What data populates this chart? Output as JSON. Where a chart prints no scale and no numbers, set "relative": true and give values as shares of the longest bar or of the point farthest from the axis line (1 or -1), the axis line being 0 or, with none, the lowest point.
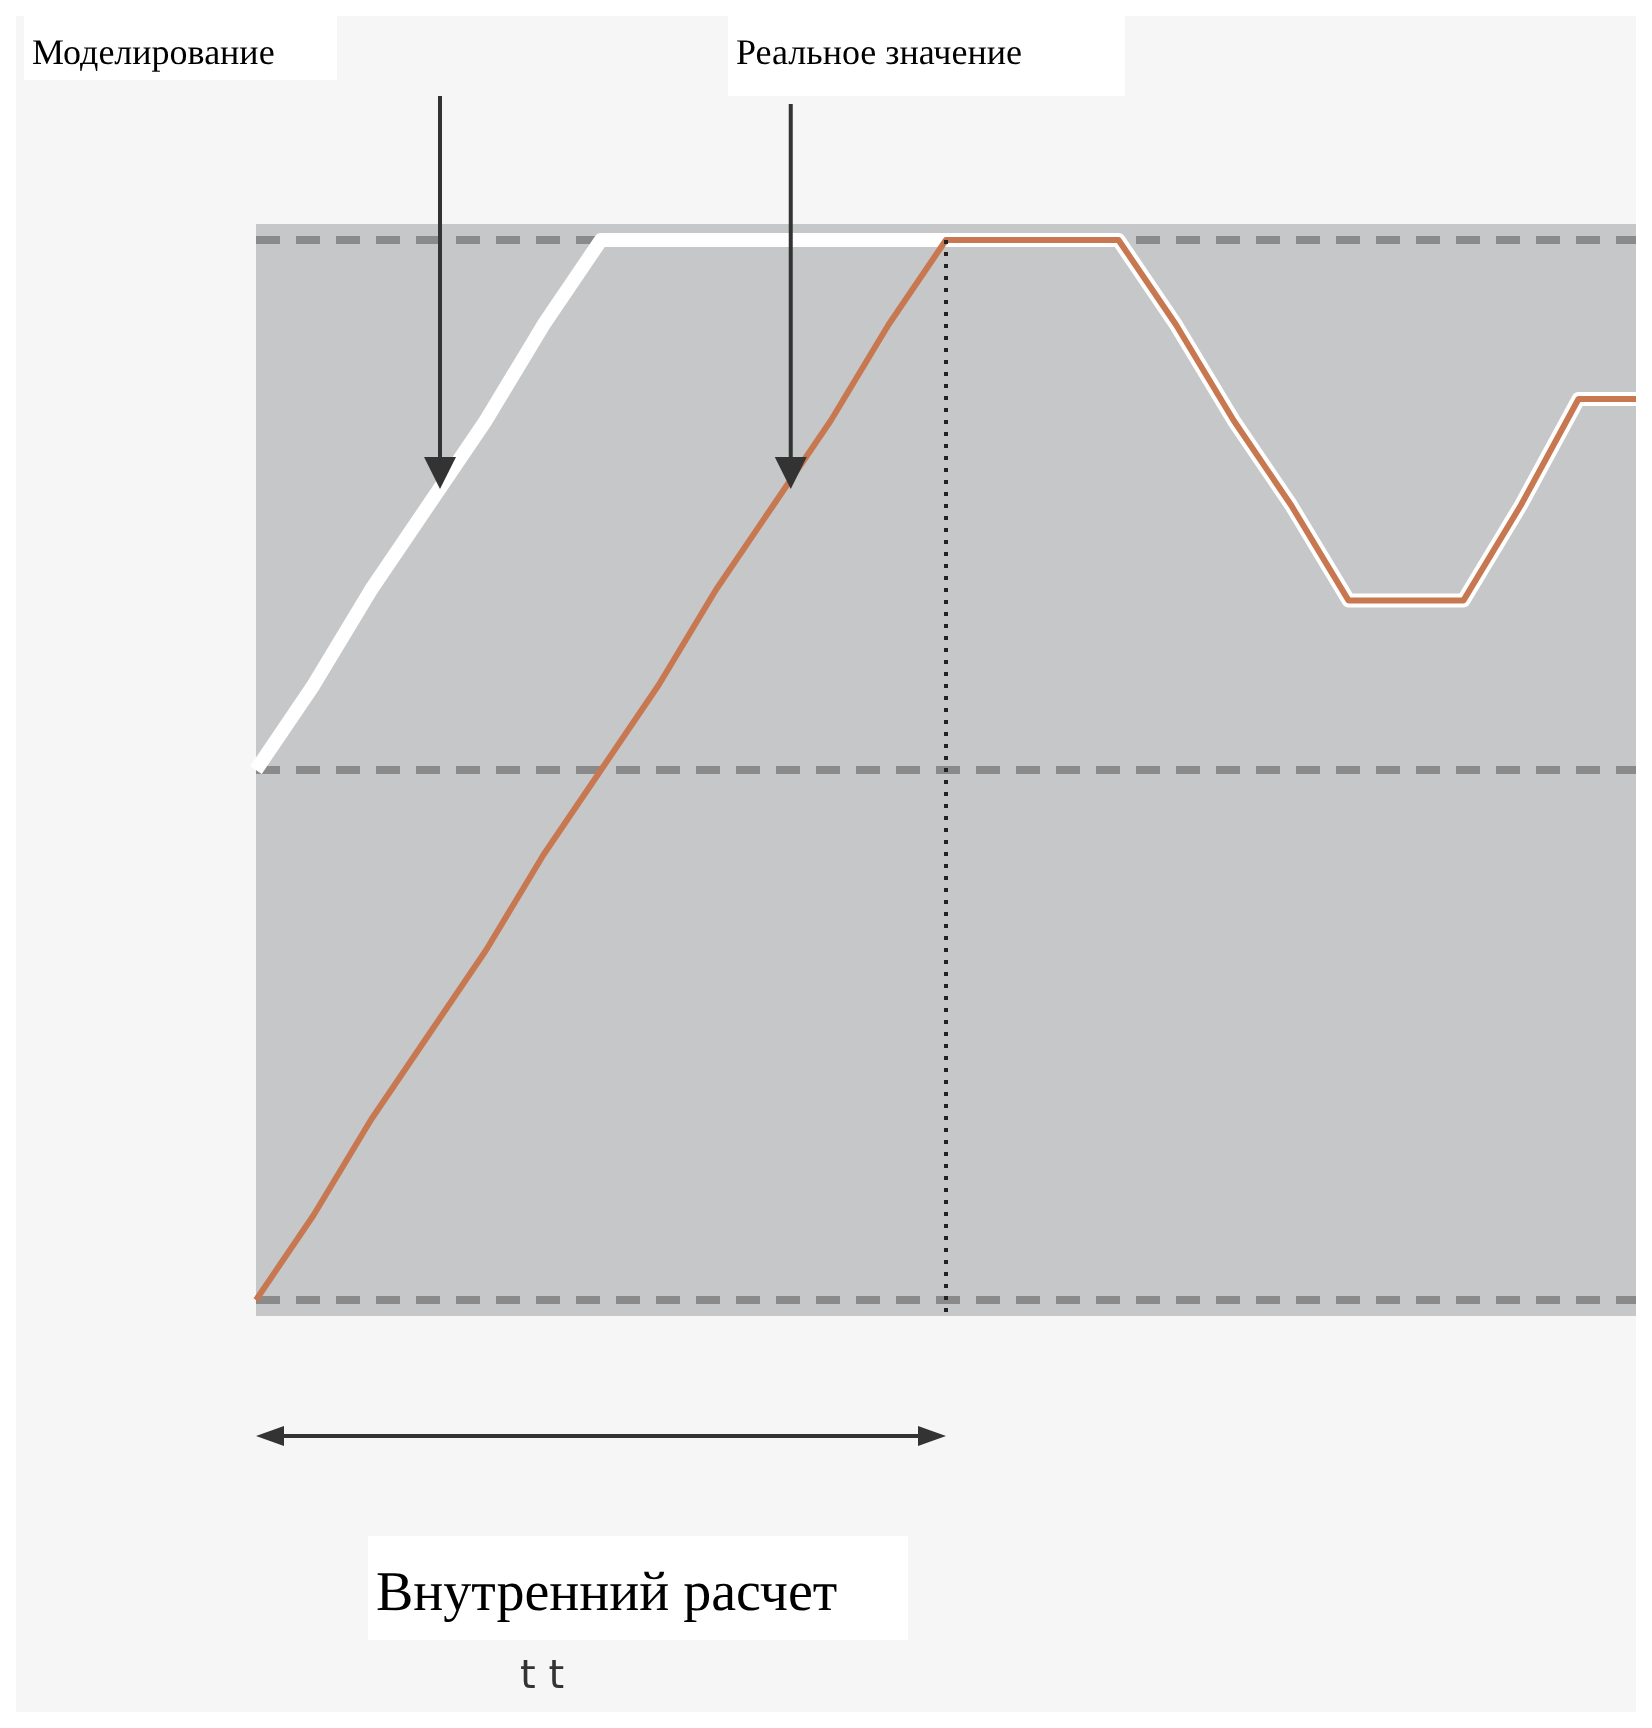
{
  "chart_data": {
    "type": "line",
    "relative": true,
    "grid": "y",
    "line_style": "solid",
    "categories": [
      null,
      null,
      null,
      null,
      null,
      null,
      null,
      null,
      null,
      null,
      null,
      null,
      null,
      null,
      null,
      null,
      null,
      null,
      null,
      null,
      null,
      null,
      null,
      null,
      null
    ],
    "series": [
      {
        "name": "Моделирование",
        "color": "#ffffff",
        "values": [
          0.5,
          0.58,
          0.67,
          0.75,
          0.83,
          0.92,
          1,
          1,
          1,
          1,
          1,
          1,
          1,
          1,
          1,
          1,
          0.92,
          0.83,
          0.75,
          0.66,
          0.66,
          0.66,
          0.75,
          0.85,
          0.85
        ]
      },
      {
        "name": "Реальное значение",
        "color": "#c87850",
        "values": [
          0,
          0.08,
          0.17,
          0.25,
          0.33,
          0.42,
          0.5,
          0.58,
          0.67,
          0.75,
          0.83,
          0.92,
          1,
          1,
          1,
          1,
          0.92,
          0.83,
          0.75,
          0.66,
          0.66,
          0.66,
          0.75,
          0.85,
          0.85
        ]
      }
    ],
    "ref_lines": [
      {
        "axis": "y",
        "value": 0.5,
        "line_style": "dashed",
        "color": "#8a8a8a"
      }
    ],
    "annotations": [
      "Внутренний расчет",
      "t t"
    ]
  }
}
